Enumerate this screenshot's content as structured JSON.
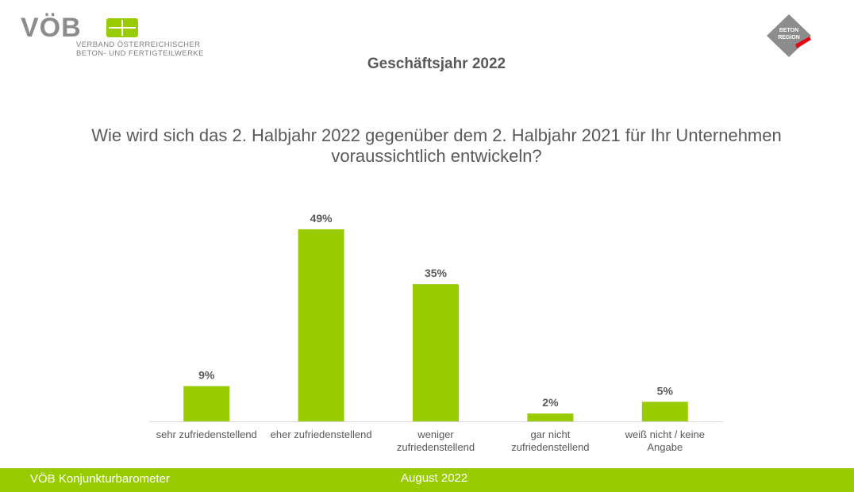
{
  "header": {
    "logo_word": "VÖB",
    "logo_line1": "VERBAND ÖSTERREICHISCHER",
    "logo_line2": "BETON- UND FERTIGTEILWERKE",
    "badge_line1": "BETON",
    "badge_line2": "REGION",
    "title": "Geschäftsjahr 2022"
  },
  "question": "Wie wird sich das 2. Halbjahr 2022 gegenüber dem 2. Halbjahr 2021 für Ihr Unternehmen voraussichtlich entwickeln?",
  "chart_data": {
    "type": "bar",
    "categories": [
      [
        "sehr zufriedenstellend"
      ],
      [
        "eher zufriedenstellend"
      ],
      [
        "weniger",
        "zufriedenstellend"
      ],
      [
        "gar nicht",
        "zufriedenstellend"
      ],
      [
        "weiß nicht / keine",
        "Angabe"
      ]
    ],
    "values": [
      9,
      49,
      35,
      2,
      5
    ],
    "value_labels": [
      "9%",
      "49%",
      "35%",
      "2%",
      "5%"
    ],
    "unit": "%",
    "ylim": [
      0,
      50
    ],
    "grid": false,
    "bar_color": "#99cc00"
  },
  "footer": {
    "left": "VÖB Konjunkturbarometer",
    "center": "August 2022",
    "color": "#99cc00"
  }
}
